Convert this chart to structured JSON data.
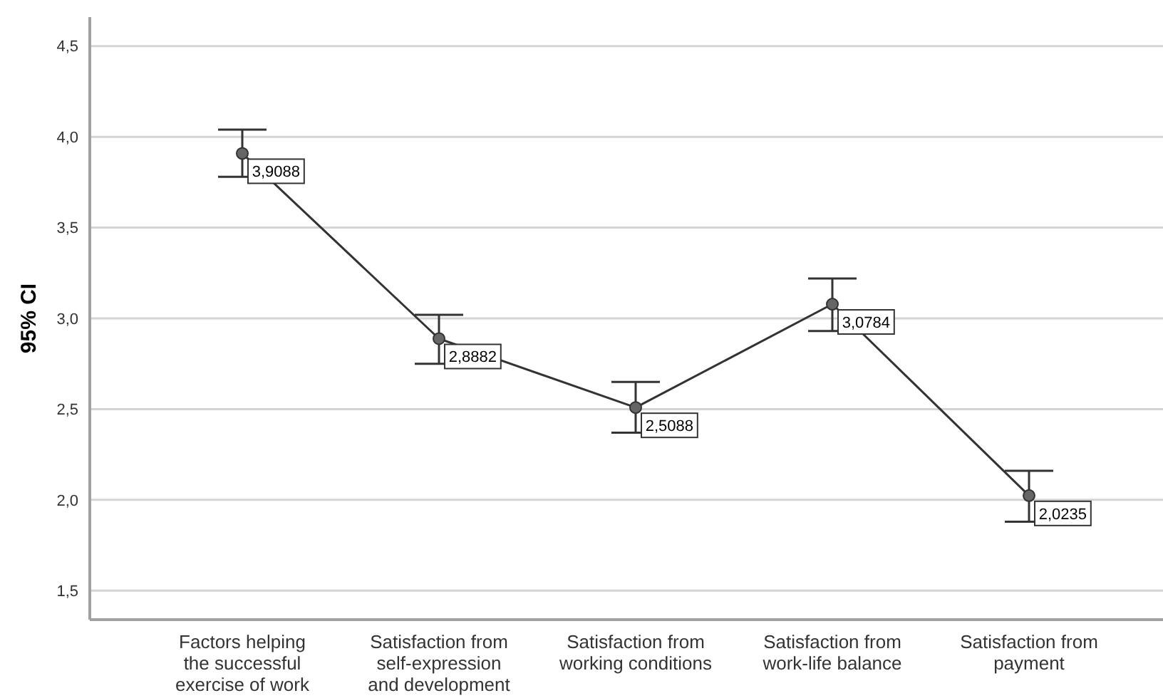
{
  "chart_data": {
    "type": "line",
    "ylabel": "95% CI",
    "categories": [
      "Factors helping the successful exercise of work",
      "Satisfaction from self-expression and development",
      "Satisfaction from working conditions",
      "Satisfaction from work-life balance",
      "Satisfaction from payment"
    ],
    "values": [
      3.9088,
      2.8882,
      2.5088,
      3.0784,
      2.0235
    ],
    "value_labels": [
      "3,9088",
      "2,8882",
      "2,5088",
      "3,0784",
      "2,0235"
    ],
    "errors": [
      [
        3.78,
        4.04
      ],
      [
        2.75,
        3.02
      ],
      [
        2.37,
        2.65
      ],
      [
        2.93,
        3.22
      ],
      [
        1.88,
        2.16
      ]
    ],
    "color": "#333333",
    "marker": "circle",
    "ylim": [
      1.34,
      4.66
    ],
    "yticks": [
      {
        "value": 1.5,
        "label": "1,5"
      },
      {
        "value": 2.0,
        "label": "2,0"
      },
      {
        "value": 2.5,
        "label": "2,5"
      },
      {
        "value": 3.0,
        "label": "3,0"
      },
      {
        "value": 3.5,
        "label": "3,5"
      },
      {
        "value": 4.0,
        "label": "4,0"
      },
      {
        "value": 4.5,
        "label": "4,5"
      }
    ],
    "grid": "y"
  }
}
